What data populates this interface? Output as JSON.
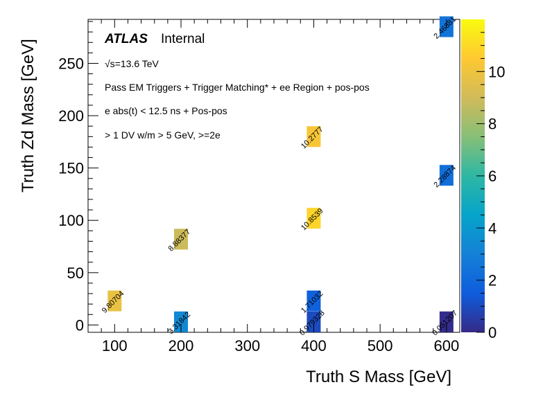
{
  "chart_data": {
    "type": "heatmap",
    "xlabel": "Truth S Mass [GeV]",
    "ylabel": "Truth Zd Mass [GeV]",
    "xlim": [
      60,
      620
    ],
    "ylim": [
      -7,
      292
    ],
    "xticks": [
      "100",
      "200",
      "300",
      "400",
      "500",
      "600"
    ],
    "yticks": [
      "0",
      "50",
      "100",
      "150",
      "200",
      "250"
    ],
    "zlim": [
      0,
      12
    ],
    "zticks": [
      "0",
      "2",
      "4",
      "6",
      "8",
      "10"
    ],
    "cells": [
      {
        "x": 100,
        "y": 23,
        "value": 9.80704,
        "label": "9.80704"
      },
      {
        "x": 200,
        "y": 82,
        "value": 8.88377,
        "label": "8.88377"
      },
      {
        "x": 200,
        "y": 3,
        "value": 3.31842,
        "label": "3.31842"
      },
      {
        "x": 400,
        "y": 180,
        "value": 10.2777,
        "label": "10.2777"
      },
      {
        "x": 400,
        "y": 102,
        "value": 10.8539,
        "label": "10.8539"
      },
      {
        "x": 400,
        "y": 23,
        "value": 1.71032,
        "label": "1.71032"
      },
      {
        "x": 400,
        "y": 3,
        "value": 0.979328,
        "label": "0.979328"
      },
      {
        "x": 600,
        "y": 285,
        "value": 2.46881,
        "label": "2.46881"
      },
      {
        "x": 600,
        "y": 143,
        "value": 2.28874,
        "label": "2.28874"
      },
      {
        "x": 600,
        "y": 3,
        "value": 0.051207,
        "label": "0.051207"
      }
    ]
  },
  "annotations": {
    "atlas": "ATLAS",
    "internal": "Internal",
    "energy": "√s=13.6 TeV",
    "line1": "Pass EM Triggers + Trigger Matching* + ee Region + pos-pos",
    "line2": "e abs(t) < 12.5 ns + Pos-pos",
    "line3": "> 1 DV w/m > 5 GeV, >=2e"
  },
  "colors": {
    "palette": [
      "#352a87",
      "#0f5cdd",
      "#1481d6",
      "#06a4ca",
      "#2eb7a4",
      "#87bf77",
      "#d1bb59",
      "#fec832",
      "#f9fb0e"
    ]
  }
}
